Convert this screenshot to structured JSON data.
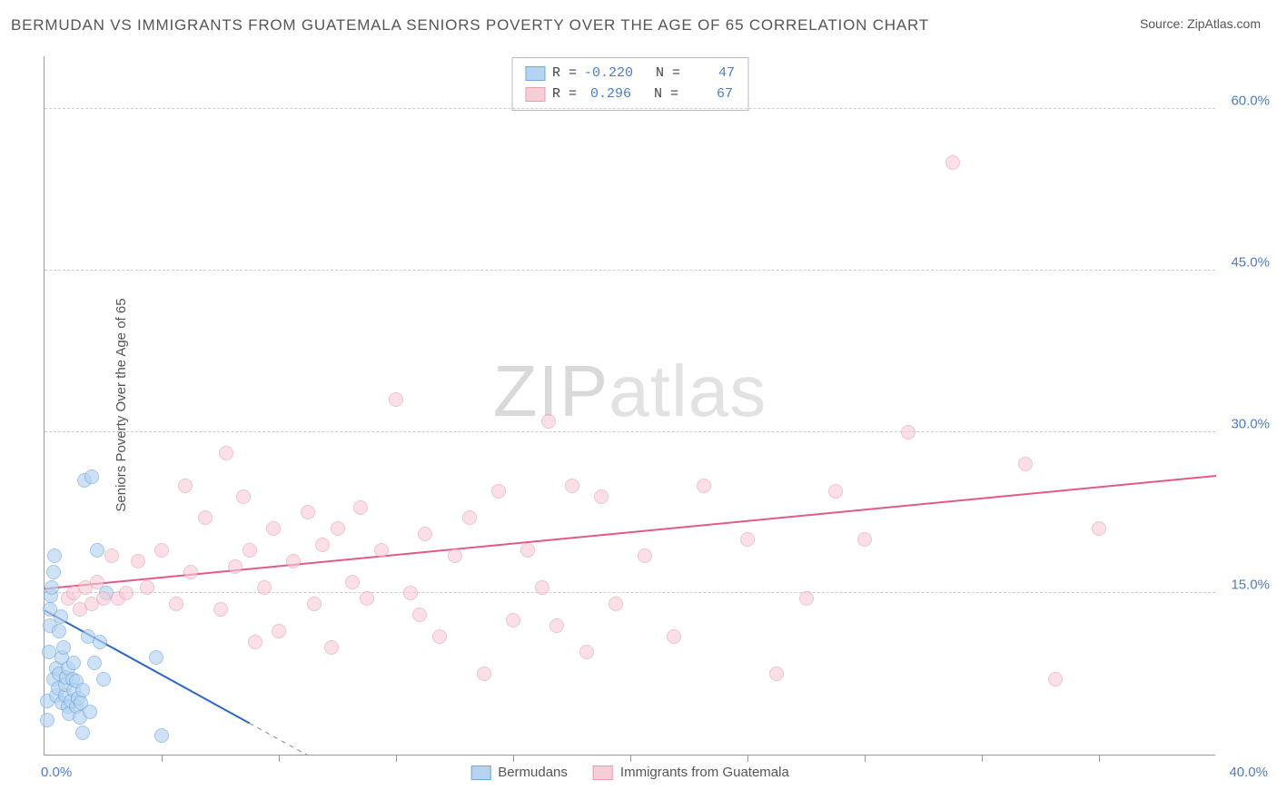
{
  "title": "BERMUDAN VS IMMIGRANTS FROM GUATEMALA SENIORS POVERTY OVER THE AGE OF 65 CORRELATION CHART",
  "source_label": "Source: ZipAtlas.com",
  "y_axis_label": "Seniors Poverty Over the Age of 65",
  "watermark_a": "ZIP",
  "watermark_b": "atlas",
  "chart": {
    "type": "scatter",
    "xlim": [
      0,
      40
    ],
    "ylim": [
      0,
      65
    ],
    "x_tick_start_label": "0.0%",
    "x_tick_end_label": "40.0%",
    "x_tick_positions": [
      4,
      8,
      12,
      16,
      20,
      24,
      28,
      32,
      36
    ],
    "y_ticks": [
      {
        "value": 15,
        "label": "15.0%"
      },
      {
        "value": 30,
        "label": "30.0%"
      },
      {
        "value": 45,
        "label": "45.0%"
      },
      {
        "value": 60,
        "label": "60.0%"
      }
    ],
    "grid_color": "#cccccc",
    "background_color": "#ffffff",
    "axis_color": "#999999",
    "tick_label_color": "#4a7ec7",
    "point_radius": 8,
    "series": [
      {
        "name": "Bermudans",
        "fill": "#b6d4f0",
        "stroke": "#6fa8dc",
        "fill_opacity": 0.65,
        "trend": {
          "x1": 0,
          "y1": 13.5,
          "x2": 7,
          "y2": 3.0,
          "dash_x2": 40,
          "color": "#2b66c4",
          "width": 2
        },
        "R": "-0.220",
        "N": "47",
        "points": [
          [
            0.1,
            3.2
          ],
          [
            0.1,
            5.0
          ],
          [
            0.15,
            9.5
          ],
          [
            0.2,
            12.0
          ],
          [
            0.2,
            13.5
          ],
          [
            0.22,
            14.8
          ],
          [
            0.25,
            15.5
          ],
          [
            0.3,
            17.0
          ],
          [
            0.35,
            18.5
          ],
          [
            0.3,
            7.0
          ],
          [
            0.4,
            8.0
          ],
          [
            0.4,
            5.5
          ],
          [
            0.45,
            6.2
          ],
          [
            0.5,
            7.5
          ],
          [
            0.5,
            11.5
          ],
          [
            0.55,
            12.8
          ],
          [
            0.6,
            4.8
          ],
          [
            0.6,
            9.0
          ],
          [
            0.65,
            10.0
          ],
          [
            0.7,
            5.5
          ],
          [
            0.7,
            6.5
          ],
          [
            0.75,
            7.2
          ],
          [
            0.8,
            8.0
          ],
          [
            0.8,
            4.5
          ],
          [
            0.85,
            3.8
          ],
          [
            0.9,
            5.0
          ],
          [
            0.95,
            7.0
          ],
          [
            1.0,
            6.0
          ],
          [
            1.0,
            8.5
          ],
          [
            1.1,
            4.5
          ],
          [
            1.1,
            6.8
          ],
          [
            1.15,
            5.2
          ],
          [
            1.2,
            3.5
          ],
          [
            1.25,
            4.8
          ],
          [
            1.3,
            6.0
          ],
          [
            1.3,
            2.0
          ],
          [
            1.35,
            25.5
          ],
          [
            1.6,
            25.8
          ],
          [
            1.5,
            11.0
          ],
          [
            1.55,
            4.0
          ],
          [
            1.7,
            8.5
          ],
          [
            1.8,
            19.0
          ],
          [
            1.9,
            10.5
          ],
          [
            2.0,
            7.0
          ],
          [
            2.1,
            15.0
          ],
          [
            3.8,
            9.0
          ],
          [
            4.0,
            1.8
          ]
        ]
      },
      {
        "name": "Immigrants from Guatemala",
        "fill": "#f7cdd6",
        "stroke": "#e79bb0",
        "fill_opacity": 0.6,
        "trend": {
          "x1": 0,
          "y1": 15.5,
          "x2": 40,
          "y2": 26.0,
          "color": "#e05a8a",
          "width": 2
        },
        "R": "0.296",
        "N": "67",
        "points": [
          [
            0.8,
            14.5
          ],
          [
            1.0,
            15.0
          ],
          [
            1.2,
            13.5
          ],
          [
            1.4,
            15.5
          ],
          [
            1.6,
            14.0
          ],
          [
            1.8,
            16.0
          ],
          [
            2.0,
            14.5
          ],
          [
            2.3,
            18.5
          ],
          [
            2.5,
            14.5
          ],
          [
            2.8,
            15.0
          ],
          [
            3.2,
            18.0
          ],
          [
            3.5,
            15.5
          ],
          [
            4.0,
            19.0
          ],
          [
            4.5,
            14.0
          ],
          [
            4.8,
            25.0
          ],
          [
            5.0,
            17.0
          ],
          [
            5.5,
            22.0
          ],
          [
            6.0,
            13.5
          ],
          [
            6.2,
            28.0
          ],
          [
            6.5,
            17.5
          ],
          [
            6.8,
            24.0
          ],
          [
            7.0,
            19.0
          ],
          [
            7.2,
            10.5
          ],
          [
            7.5,
            15.5
          ],
          [
            7.8,
            21.0
          ],
          [
            8.0,
            11.5
          ],
          [
            8.5,
            18.0
          ],
          [
            9.0,
            22.5
          ],
          [
            9.2,
            14.0
          ],
          [
            9.5,
            19.5
          ],
          [
            9.8,
            10.0
          ],
          [
            10.0,
            21.0
          ],
          [
            10.5,
            16.0
          ],
          [
            10.8,
            23.0
          ],
          [
            11.0,
            14.5
          ],
          [
            11.5,
            19.0
          ],
          [
            12.0,
            33.0
          ],
          [
            12.5,
            15.0
          ],
          [
            12.8,
            13.0
          ],
          [
            13.0,
            20.5
          ],
          [
            13.5,
            11.0
          ],
          [
            14.0,
            18.5
          ],
          [
            14.5,
            22.0
          ],
          [
            15.0,
            7.5
          ],
          [
            15.5,
            24.5
          ],
          [
            16.0,
            12.5
          ],
          [
            16.5,
            19.0
          ],
          [
            17.0,
            15.5
          ],
          [
            17.2,
            31.0
          ],
          [
            17.5,
            12.0
          ],
          [
            18.0,
            25.0
          ],
          [
            18.5,
            9.5
          ],
          [
            19.0,
            24.0
          ],
          [
            19.5,
            14.0
          ],
          [
            20.5,
            18.5
          ],
          [
            21.5,
            11.0
          ],
          [
            22.5,
            25.0
          ],
          [
            24.0,
            20.0
          ],
          [
            25.0,
            7.5
          ],
          [
            26.0,
            14.5
          ],
          [
            27.0,
            24.5
          ],
          [
            28.0,
            20.0
          ],
          [
            29.5,
            30.0
          ],
          [
            31.0,
            55.0
          ],
          [
            33.5,
            27.0
          ],
          [
            34.5,
            7.0
          ],
          [
            36.0,
            21.0
          ]
        ]
      }
    ]
  },
  "stats_legend": {
    "r_label": "R =",
    "n_label": "N ="
  },
  "bottom_legend": {
    "series1_label": "Bermudans",
    "series2_label": "Immigrants from Guatemala"
  }
}
